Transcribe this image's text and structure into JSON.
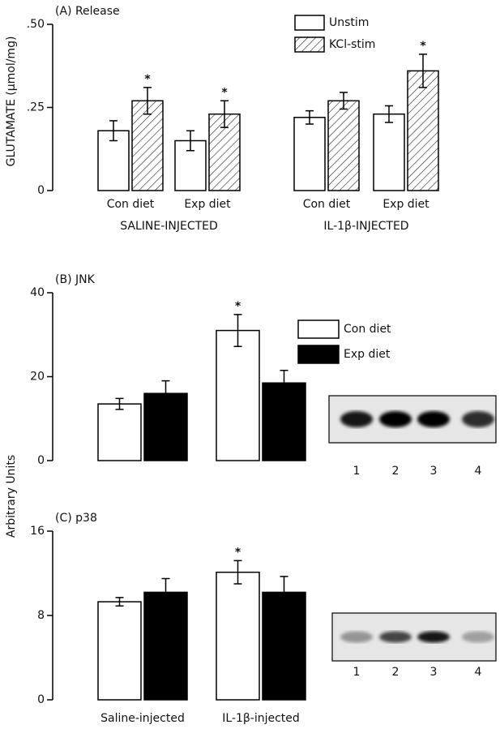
{
  "chart_data": [
    {
      "type": "bar",
      "title": "(A) Release",
      "ylabel": "GLUTAMATE (µmol/mg)",
      "categories": [
        "Con diet",
        "Exp diet",
        "Con diet",
        "Exp diet"
      ],
      "groups": [
        "SALINE-INJECTED",
        "IL-1β-INJECTED"
      ],
      "ylim": [
        0,
        0.5
      ],
      "yticks": [
        0,
        {
          "value": 0.25,
          "label": ".25"
        },
        {
          "value": 0.5,
          "label": ".50"
        }
      ],
      "legend": true,
      "series": [
        {
          "name": "Unstim",
          "color": "#ffffff",
          "values": [
            0.18,
            0.15,
            0.22,
            0.23
          ],
          "errors": [
            0.03,
            0.03,
            0.02,
            0.025
          ],
          "markers": [
            null,
            null,
            null,
            null
          ]
        },
        {
          "name": "KCl-stim",
          "color": "#ffffff",
          "pattern": "hatch",
          "values": [
            0.27,
            0.23,
            0.27,
            0.36
          ],
          "errors": [
            0.04,
            0.04,
            0.025,
            0.05
          ],
          "markers": [
            "*",
            "*",
            null,
            "*"
          ]
        }
      ]
    },
    {
      "type": "bar",
      "title": "(B) JNK",
      "ylabel": "Arbitrary Units",
      "categories": [
        null,
        null
      ],
      "ylim": [
        0,
        40
      ],
      "yticks": [
        0,
        20,
        40
      ],
      "legend": true,
      "blot_lanes": [
        "1",
        "2",
        "3",
        "4"
      ],
      "series": [
        {
          "name": "Con diet",
          "color": "#ffffff",
          "values": [
            13.5,
            31
          ],
          "errors": [
            1.3,
            3.8
          ],
          "markers": [
            null,
            "*"
          ]
        },
        {
          "name": "Exp diet",
          "color": "#000000",
          "values": [
            16,
            18.5
          ],
          "errors": [
            3,
            3
          ],
          "markers": [
            null,
            null
          ]
        }
      ]
    },
    {
      "type": "bar",
      "title": "(C) p38",
      "categories": [
        "Saline-injected",
        "IL-1β-injected"
      ],
      "ylim": [
        0,
        16
      ],
      "yticks": [
        0,
        8,
        16
      ],
      "legend": false,
      "blot_lanes": [
        "1",
        "2",
        "3",
        "4"
      ],
      "series": [
        {
          "color": "#ffffff",
          "values": [
            9.3,
            12.1
          ],
          "errors": [
            0.4,
            1.1
          ],
          "markers": [
            null,
            "*"
          ]
        },
        {
          "color": "#000000",
          "values": [
            10.2,
            10.2
          ],
          "errors": [
            1.3,
            1.5
          ],
          "markers": [
            null,
            null
          ]
        }
      ]
    }
  ]
}
